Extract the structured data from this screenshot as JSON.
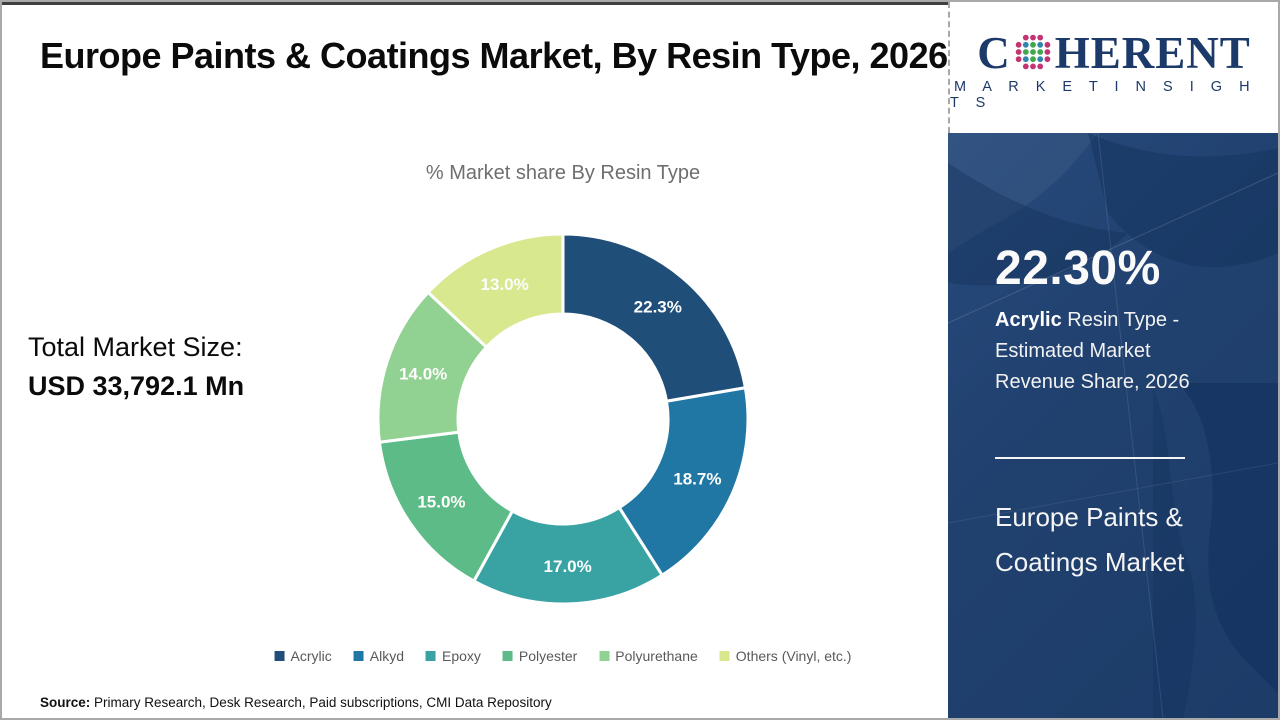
{
  "header": {
    "title": "Europe Paints & Coatings Market, By Resin Type, 2026"
  },
  "logo": {
    "word_prefix": "C",
    "word_suffix": "HERENT",
    "subline": "M A R K E T   I N S I G H T S",
    "navy": "#1c3a69",
    "globe_green": "#3fa84c",
    "globe_teal": "#2e86ad",
    "globe_magenta": "#c23572"
  },
  "total": {
    "label": "Total Market Size:",
    "value": "USD 33,792.1 Mn"
  },
  "source": {
    "label": "Source:",
    "text": "Primary Research, Desk Research, Paid subscriptions, CMI Data Repository"
  },
  "sidebar": {
    "stat_value": "22.30%",
    "stat_bold": "Acrylic",
    "stat_rest": " Resin Type - Estimated Market Revenue Share, 2026",
    "panel_title": "Europe Paints & Coatings Market",
    "panel_bg": "#1f3e6d"
  },
  "chart_data": {
    "type": "pie",
    "subtype": "donut",
    "title": "% Market share By Resin Type",
    "categories": [
      "Acrylic",
      "Alkyd",
      "Epoxy",
      "Polyester",
      "Polyurethane",
      "Others (Vinyl, etc.)"
    ],
    "values": [
      22.3,
      18.7,
      17.0,
      15.0,
      14.0,
      13.0
    ],
    "labels": [
      "22.3%",
      "18.7%",
      "17.0%",
      "15.0%",
      "14.0%",
      "13.0%"
    ],
    "colors": [
      "#1f4e79",
      "#2077a4",
      "#39a3a3",
      "#5dbb87",
      "#91d191",
      "#d7e88e"
    ],
    "start_angle_deg": 0,
    "clockwise": true,
    "legend_position": "bottom",
    "label_color": "#ffffff"
  }
}
